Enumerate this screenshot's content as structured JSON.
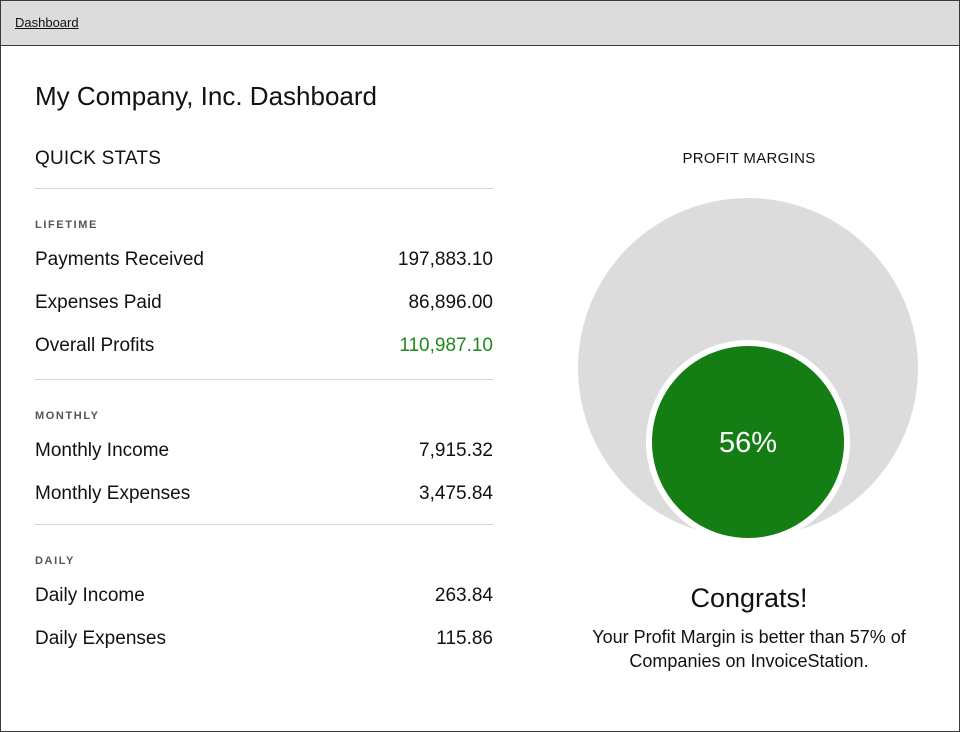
{
  "nav": {
    "dashboard_link": "Dashboard"
  },
  "page": {
    "title": "My Company, Inc. Dashboard"
  },
  "quick_stats": {
    "heading": "QUICK STATS",
    "groups": [
      {
        "label": "LIFETIME",
        "rows": [
          {
            "label": "Payments Received",
            "value": "197,883.10"
          },
          {
            "label": "Expenses Paid",
            "value": "86,896.00"
          },
          {
            "label": "Overall Profits",
            "value": "110,987.10"
          }
        ]
      },
      {
        "label": "MONTHLY",
        "rows": [
          {
            "label": "Monthly Income",
            "value": "7,915.32"
          },
          {
            "label": "Monthly Expenses",
            "value": "3,475.84"
          }
        ]
      },
      {
        "label": "DAILY",
        "rows": [
          {
            "label": "Daily Income",
            "value": "263.84"
          },
          {
            "label": "Daily Expenses",
            "value": "115.86"
          }
        ]
      }
    ]
  },
  "profit_margins": {
    "heading": "PROFIT MARGINS",
    "value_label": "56%",
    "value": 56,
    "benchmark": 57,
    "colors": {
      "outer": "#dcdcdc",
      "inner": "#147d14",
      "inner_text": "#ffffff",
      "positive_value": "#1e8a1e"
    },
    "congrats_title": "Congrats!",
    "congrats_line1": "Your Profit Margin is better than 57% of",
    "congrats_line2": "Companies on InvoiceStation."
  }
}
